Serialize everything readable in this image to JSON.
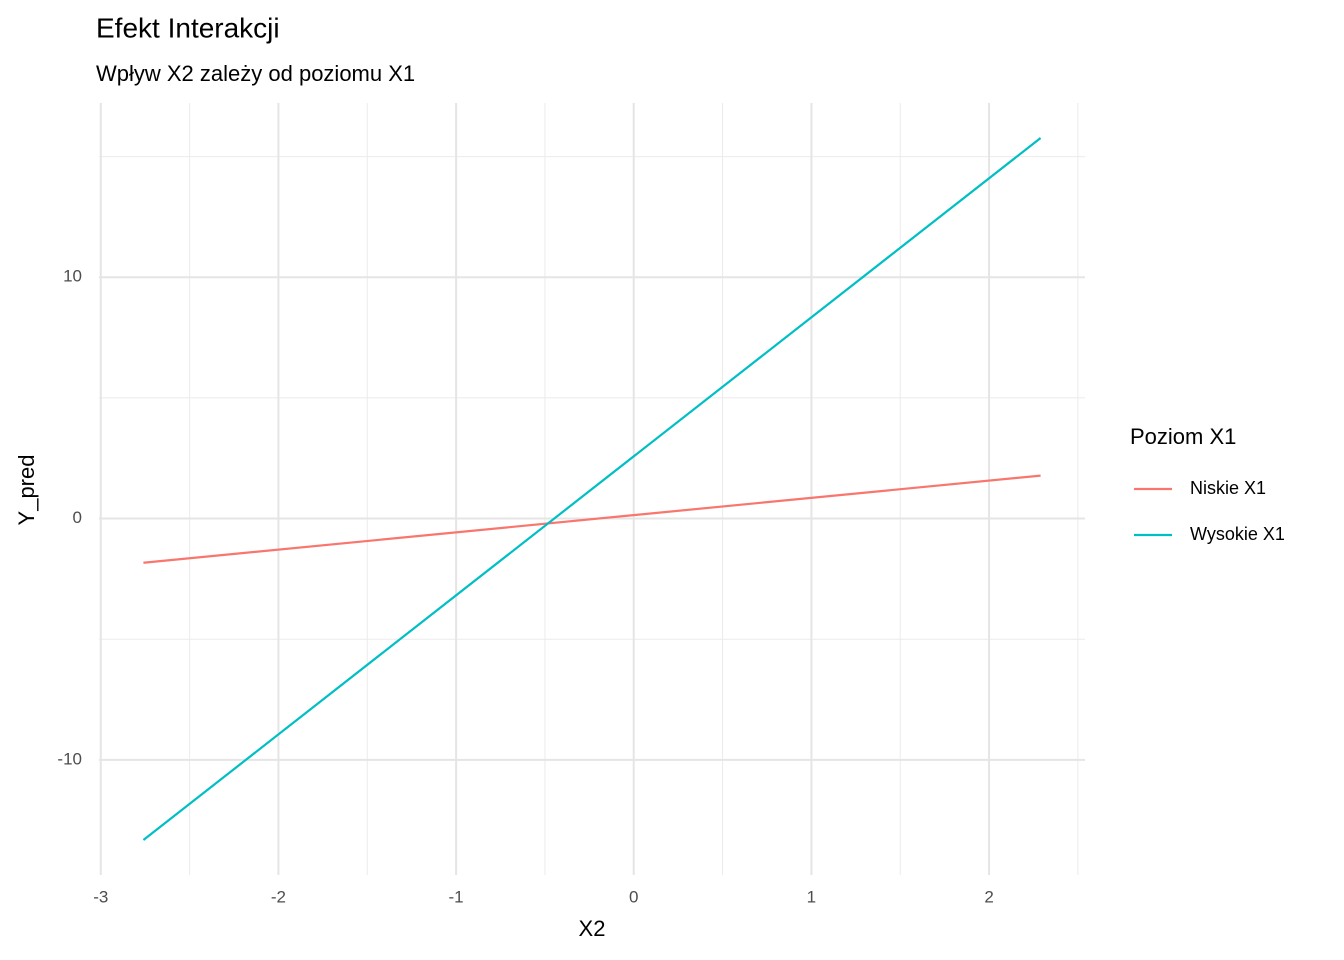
{
  "chart_data": {
    "type": "line",
    "title": "Efekt Interakcji",
    "subtitle": "Wpływ X2 zależy od poziomu X1",
    "x_label": "X2",
    "y_label": "Y_pred",
    "legend_title": "Poziom X1",
    "legend_position": "right",
    "x": [
      -2.76,
      2.29
    ],
    "series": [
      {
        "name": "Niskie X1",
        "color": "#F8766D",
        "values": [
          -1.83,
          1.78
        ]
      },
      {
        "name": "Wysokie X1",
        "color": "#00BFC4",
        "values": [
          -13.32,
          15.77
        ]
      }
    ],
    "xlim": [
      -3.01,
      2.54
    ],
    "ylim": [
      -14.77,
      17.22
    ],
    "xticks": [
      -3,
      -2,
      -1,
      0,
      1,
      2
    ],
    "yticks": [
      -10,
      0,
      10
    ],
    "x_minor_grid": [
      -2.5,
      -1.5,
      -0.5,
      0.5,
      1.5,
      2.5
    ],
    "y_minor_grid": [
      -5,
      5,
      15
    ],
    "grid": true
  }
}
